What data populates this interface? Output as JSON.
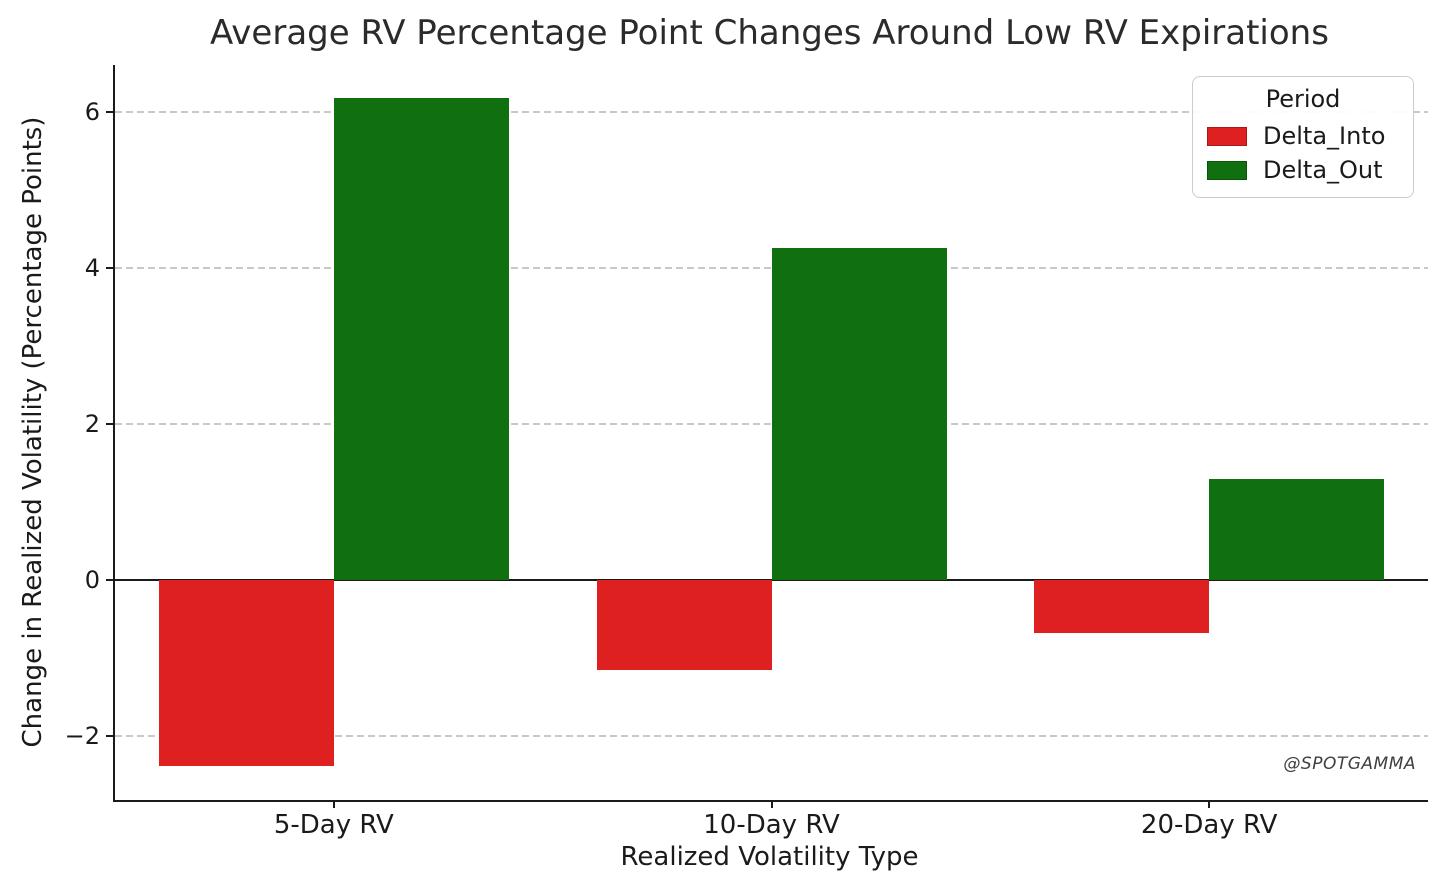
{
  "chart_data": {
    "type": "bar",
    "title": "Average RV Percentage Point Changes Around Low RV Expirations",
    "xlabel": "Realized Volatility Type",
    "ylabel": "Change in Realized Volatility (Percentage Points)",
    "categories": [
      "5-Day RV",
      "10-Day RV",
      "20-Day RV"
    ],
    "series": [
      {
        "name": "Delta_Into",
        "color": "#df2020",
        "values": [
          -2.38,
          -1.15,
          -0.68
        ]
      },
      {
        "name": "Delta_Out",
        "color": "#107010",
        "values": [
          6.18,
          4.26,
          1.29
        ]
      }
    ],
    "legend": {
      "title": "Period",
      "position": "upper-right"
    },
    "yticks": [
      6,
      4,
      2,
      0,
      -2
    ],
    "ylim": [
      -2.85,
      6.6
    ],
    "grid": "dashed-horizontal",
    "zero_line": true
  },
  "watermark": "@SPOTGAMMA"
}
